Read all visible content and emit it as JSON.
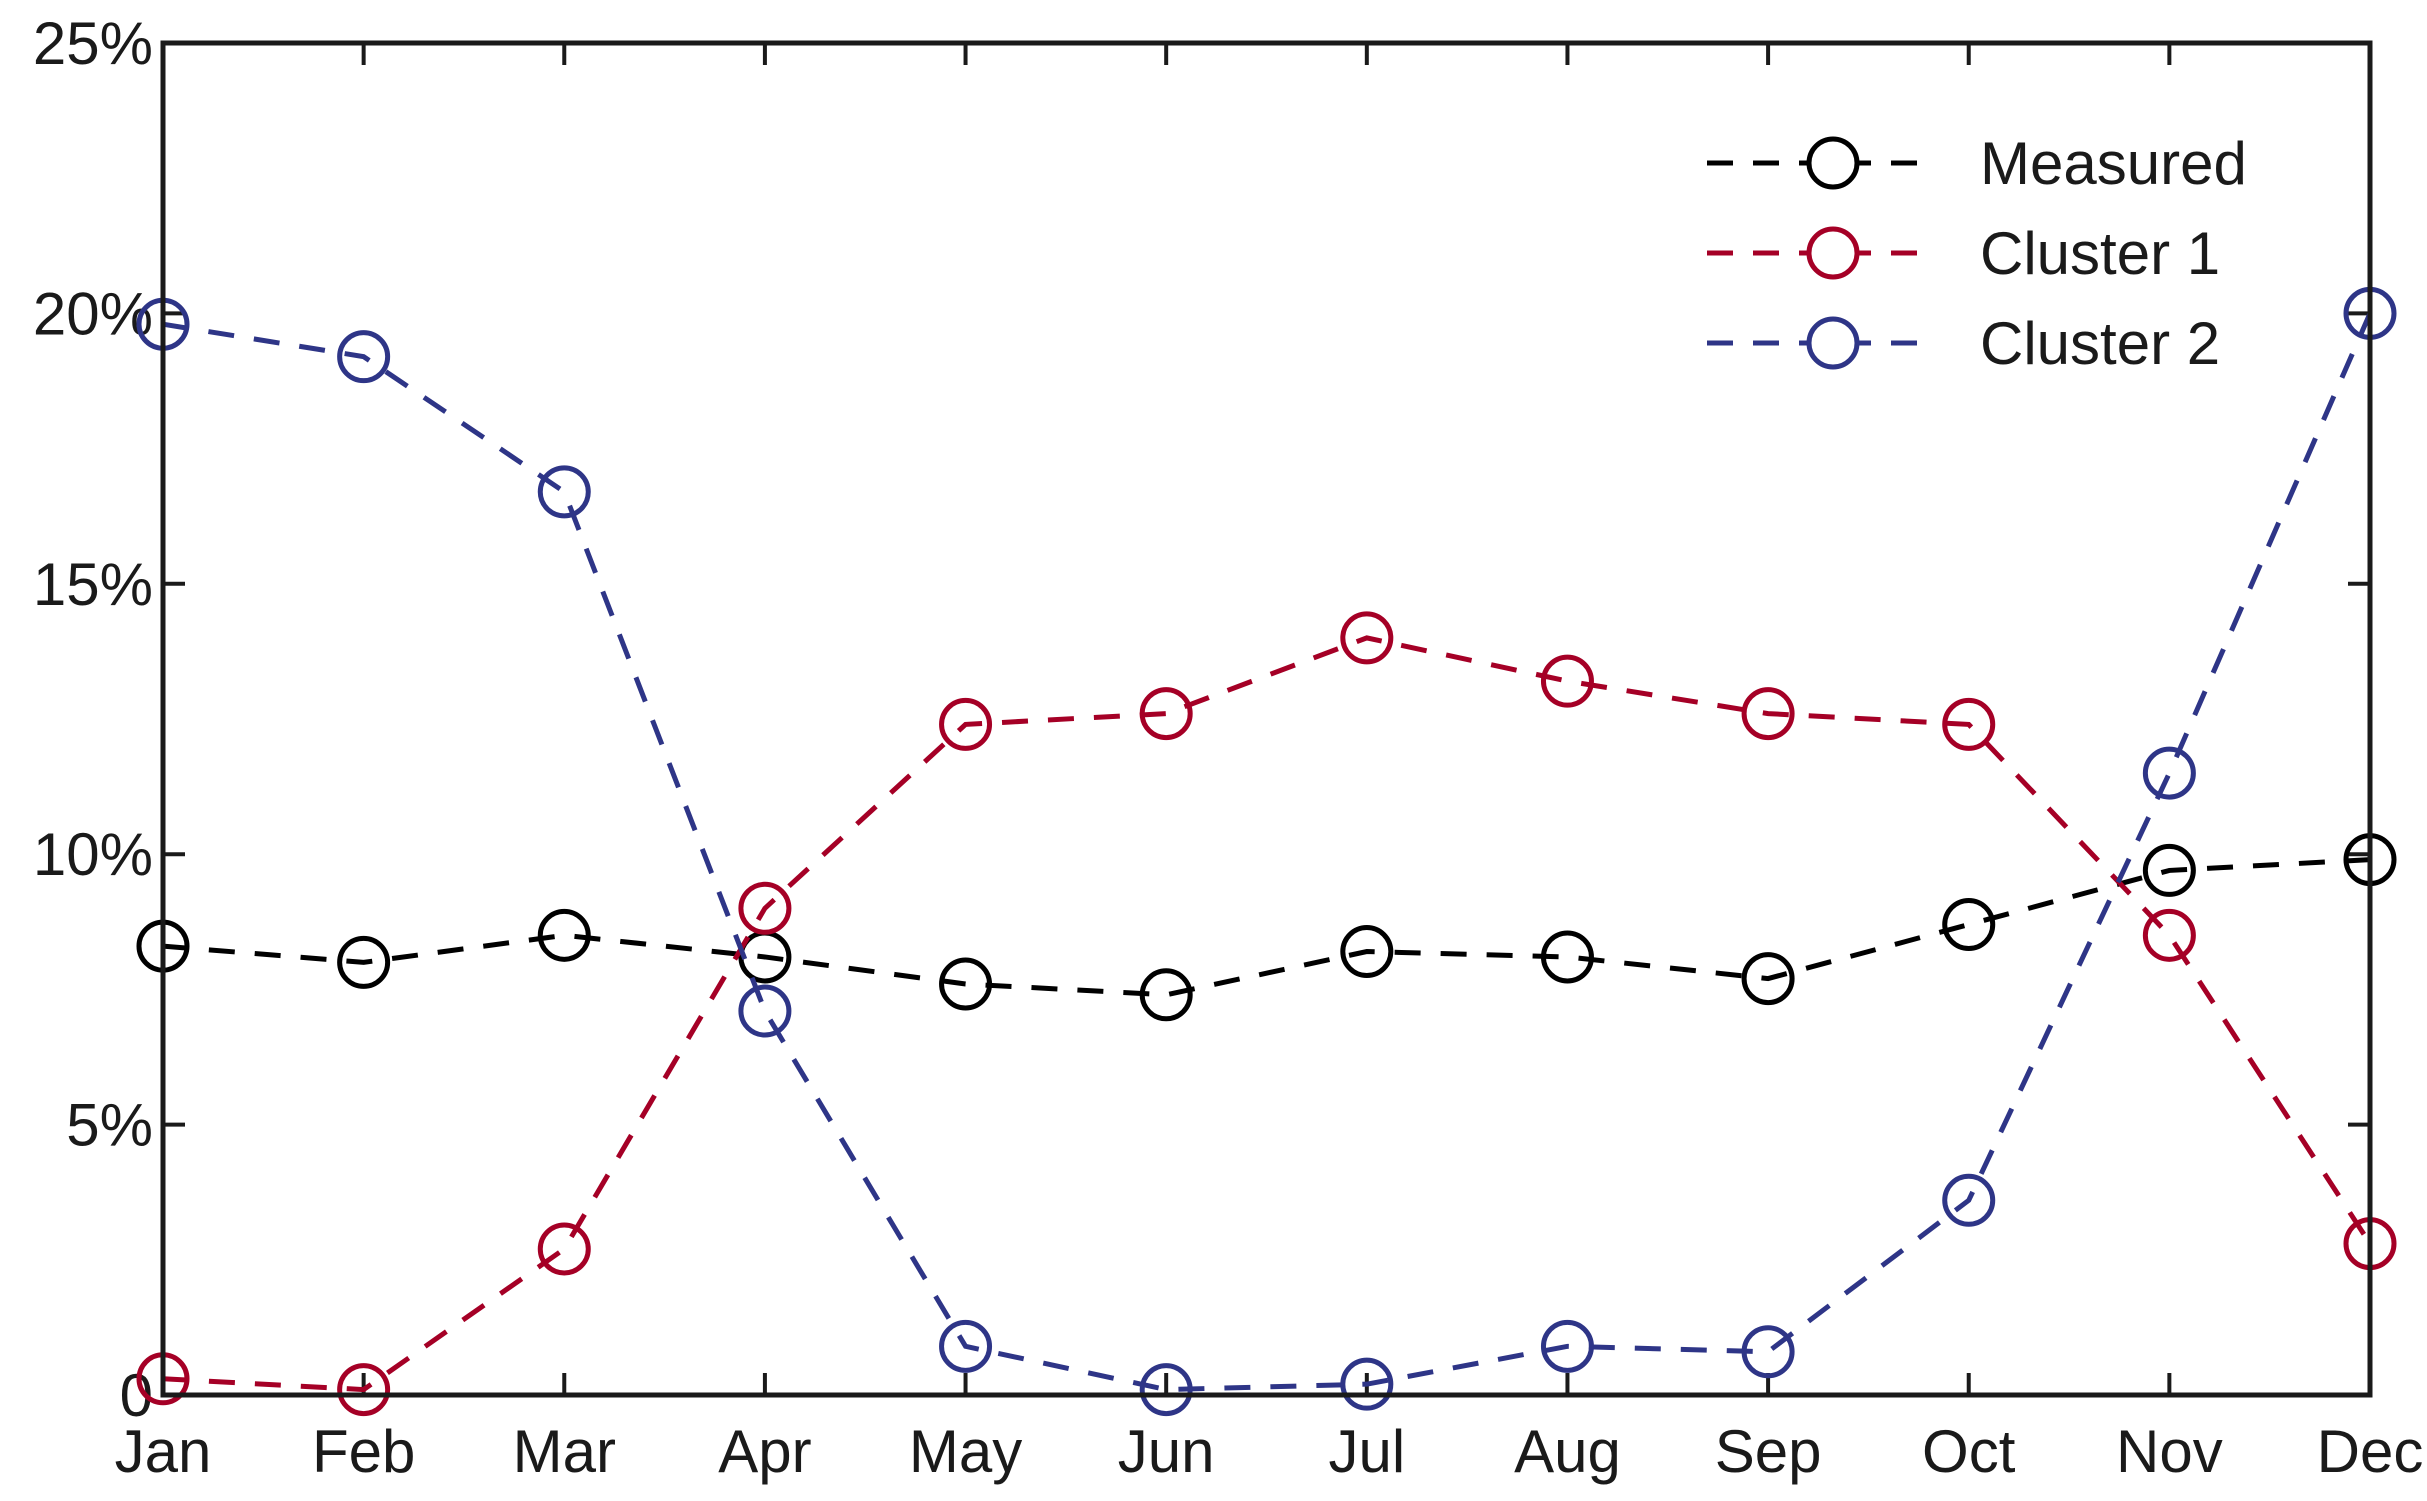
{
  "chart_data": {
    "type": "line",
    "categories": [
      "Jan",
      "Feb",
      "Mar",
      "Apr",
      "May",
      "Jun",
      "Jul",
      "Aug",
      "Sep",
      "Oct",
      "Nov",
      "Dec"
    ],
    "series": [
      {
        "name": "Measured",
        "color": "#000000",
        "values": [
          8.3,
          8.0,
          8.5,
          8.1,
          7.6,
          7.4,
          8.2,
          8.1,
          7.7,
          8.7,
          9.7,
          9.9
        ]
      },
      {
        "name": "Cluster 1",
        "color": "#a50026",
        "values": [
          0.3,
          0.1,
          2.7,
          9.0,
          12.4,
          12.6,
          14.0,
          13.2,
          12.6,
          12.4,
          8.5,
          2.8
        ]
      },
      {
        "name": "Cluster 2",
        "color": "#2e3587",
        "values": [
          19.8,
          19.2,
          16.7,
          7.1,
          0.9,
          0.1,
          0.2,
          0.9,
          0.8,
          3.6,
          11.5,
          20.0
        ]
      }
    ],
    "yticks": [
      "0",
      "5%",
      "10%",
      "15%",
      "20%",
      "25%"
    ],
    "ylim": [
      0,
      25
    ],
    "title": "",
    "xlabel": "",
    "ylabel": "",
    "marker": "open-circle",
    "line_style": "dashed",
    "legend_position": "top-right",
    "grid": false
  }
}
